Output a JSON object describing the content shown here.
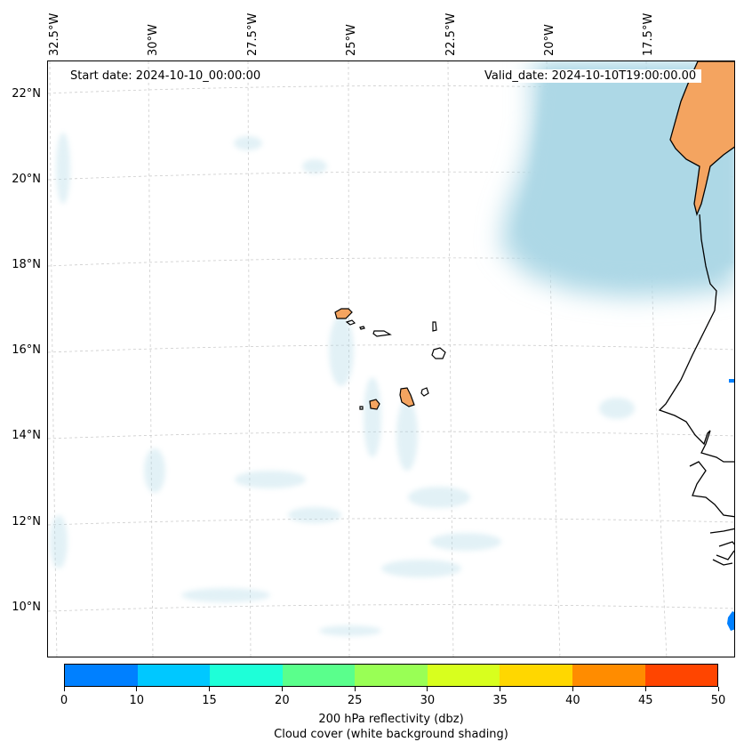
{
  "map": {
    "start_date": "Start date: 2024-10-10_00:00:00",
    "valid_date": "Valid_date: 2024-10-10T19:00:00.00",
    "lon_labels": [
      "32.5°W",
      "30°W",
      "27.5°W",
      "25°W",
      "22.5°W",
      "20°W",
      "17.5°W"
    ],
    "lat_labels": [
      "22°N",
      "20°N",
      "18°N",
      "16°N",
      "14°N",
      "12°N",
      "10°N"
    ],
    "land_color": "#f4a460",
    "cloud_color": "#add8e6"
  },
  "colorbar": {
    "colors": [
      "#0080ff",
      "#00c8ff",
      "#1effd8",
      "#5aff8c",
      "#99ff55",
      "#d8ff1e",
      "#ffd700",
      "#ff8c00",
      "#ff4500"
    ],
    "ticks": [
      "0",
      "10",
      "15",
      "20",
      "25",
      "30",
      "35",
      "40",
      "45",
      "50"
    ],
    "label": "200 hPa reflectivity (dbz)",
    "sublabel": "Cloud cover (white background shading)"
  }
}
